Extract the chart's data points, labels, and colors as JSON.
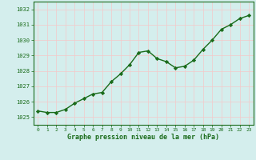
{
  "x": [
    0,
    1,
    2,
    3,
    4,
    5,
    6,
    7,
    8,
    9,
    10,
    11,
    12,
    13,
    14,
    15,
    16,
    17,
    18,
    19,
    20,
    21,
    22,
    23
  ],
  "y": [
    1025.4,
    1025.3,
    1025.3,
    1025.5,
    1025.9,
    1026.2,
    1026.5,
    1026.6,
    1027.3,
    1027.8,
    1028.4,
    1029.2,
    1029.3,
    1028.8,
    1028.6,
    1028.2,
    1028.3,
    1028.7,
    1029.4,
    1030.0,
    1030.7,
    1031.0,
    1031.4,
    1031.6
  ],
  "line_color": "#1a6b1a",
  "marker": "D",
  "marker_size": 2.2,
  "bg_color": "#d4eeed",
  "grid_color": "#f5c8c8",
  "xlabel": "Graphe pression niveau de la mer (hPa)",
  "xlabel_color": "#1a6b1a",
  "tick_color": "#1a6b1a",
  "ylim": [
    1024.5,
    1032.5
  ],
  "yticks": [
    1025,
    1026,
    1027,
    1028,
    1029,
    1030,
    1031,
    1032
  ],
  "xlim": [
    -0.5,
    23.5
  ],
  "xticks": [
    0,
    1,
    2,
    3,
    4,
    5,
    6,
    7,
    8,
    9,
    10,
    11,
    12,
    13,
    14,
    15,
    16,
    17,
    18,
    19,
    20,
    21,
    22,
    23
  ]
}
